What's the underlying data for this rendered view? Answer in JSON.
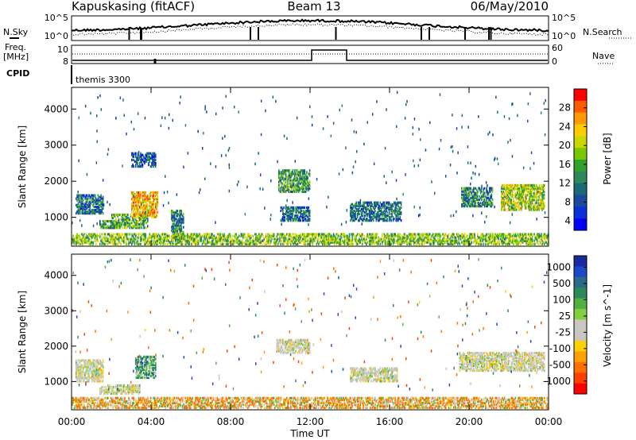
{
  "header": {
    "radar": "Kapuskasing (fitACF)",
    "beam": "Beam 13",
    "date": "06/May/2010"
  },
  "status_panel": {
    "nsky_label": "N.Sky",
    "nsearch_label": "N.Search",
    "freq_label": "Freq.",
    "freq_unit": "[MHz]",
    "nave_label": "Nave",
    "cpid_label": "CPID",
    "cpid_value": "themis 3300",
    "noise_ticks_left": [
      "10^5",
      "10^0"
    ],
    "noise_ticks_right": [
      "10^5",
      "10^0"
    ],
    "freq_ticks": [
      "10",
      "8"
    ],
    "nave_ticks": [
      "60",
      "0"
    ]
  },
  "x_axis": {
    "label": "Time UT",
    "ticks": [
      "00:00",
      "04:00",
      "08:00",
      "12:00",
      "16:00",
      "20:00",
      "00:00"
    ]
  },
  "power_panel": {
    "ylabel": "Slant Range [km]",
    "yticks": [
      "4000",
      "3000",
      "2000",
      "1000"
    ],
    "colorbar_label": "Power [dB]",
    "colorbar_ticks": [
      "28",
      "24",
      "20",
      "16",
      "12",
      "8",
      "4"
    ],
    "colorbar_colors": [
      "#ff0000",
      "#ff5a00",
      "#ff9a00",
      "#ffcc00",
      "#c8d800",
      "#78c800",
      "#30a030",
      "#2a8a5a",
      "#1a6a7a",
      "#1a4aa0",
      "#0a30d8",
      "#0000ff"
    ]
  },
  "velocity_panel": {
    "ylabel": "Slant Range [km]",
    "yticks": [
      "4000",
      "3000",
      "2000",
      "1000"
    ],
    "colorbar_label": "Velocity [m s^-1]",
    "colorbar_ticks": [
      "1000",
      "500",
      "100",
      "25",
      "-25",
      "-100",
      "-500",
      "-1000"
    ],
    "colorbar_colors": [
      "#1a2aa0",
      "#1a4ac8",
      "#2a6a8a",
      "#2a8a5a",
      "#50b040",
      "#80d040",
      "#c8c8c0",
      "#c8c8c0",
      "#ffd000",
      "#ffa000",
      "#ff7000",
      "#ff4000",
      "#ff0000"
    ]
  },
  "chart_data": [
    {
      "type": "heatmap",
      "title": "Power [dB]",
      "xlabel": "Time UT",
      "ylabel": "Slant Range [km]",
      "xlim": [
        0,
        24
      ],
      "ylim": [
        200,
        4600
      ],
      "zlim": [
        0,
        30
      ],
      "clusters": [
        {
          "t": [
            0.2,
            1.6
          ],
          "r": [
            1100,
            1600
          ],
          "z": 8
        },
        {
          "t": [
            1.4,
            2.4
          ],
          "r": [
            700,
            900
          ],
          "z": 12
        },
        {
          "t": [
            2.0,
            3.8
          ],
          "r": [
            700,
            1100
          ],
          "z": 14
        },
        {
          "t": [
            3.0,
            4.3
          ],
          "r": [
            1000,
            1700
          ],
          "z": 22
        },
        {
          "t": [
            3.0,
            4.2
          ],
          "r": [
            2400,
            2800
          ],
          "z": 6
        },
        {
          "t": [
            5.0,
            5.6
          ],
          "r": [
            400,
            1200
          ],
          "z": 10
        },
        {
          "t": [
            10.4,
            12.0
          ],
          "r": [
            1700,
            2300
          ],
          "z": 12
        },
        {
          "t": [
            10.5,
            12.0
          ],
          "r": [
            900,
            1300
          ],
          "z": 8
        },
        {
          "t": [
            14.0,
            16.6
          ],
          "r": [
            900,
            1400
          ],
          "z": 8
        },
        {
          "t": [
            19.6,
            21.2
          ],
          "r": [
            1300,
            1800
          ],
          "z": 10
        },
        {
          "t": [
            21.6,
            23.8
          ],
          "r": [
            1200,
            1900
          ],
          "z": 18
        },
        {
          "t": [
            0.0,
            24.0
          ],
          "r": [
            250,
            550
          ],
          "z": 16
        }
      ]
    },
    {
      "type": "heatmap",
      "title": "Velocity [m s^-1]",
      "xlabel": "Time UT",
      "ylabel": "Slant Range [km]",
      "xlim": [
        0,
        24
      ],
      "ylim": [
        200,
        4600
      ],
      "zlim": [
        -1000,
        1000
      ],
      "clusters": [
        {
          "t": [
            0.2,
            1.6
          ],
          "r": [
            1000,
            1600
          ],
          "v": 0
        },
        {
          "t": [
            1.4,
            3.4
          ],
          "r": [
            650,
            900
          ],
          "v": 0
        },
        {
          "t": [
            3.2,
            4.2
          ],
          "r": [
            1100,
            1700
          ],
          "v": 200
        },
        {
          "t": [
            10.3,
            12.0
          ],
          "r": [
            1800,
            2200
          ],
          "v": 0
        },
        {
          "t": [
            14.0,
            16.4
          ],
          "r": [
            1000,
            1400
          ],
          "v": 0
        },
        {
          "t": [
            19.5,
            23.8
          ],
          "r": [
            1300,
            1800
          ],
          "v": 0
        },
        {
          "t": [
            0.0,
            24.0
          ],
          "r": [
            250,
            550
          ],
          "v": -100
        }
      ]
    }
  ]
}
